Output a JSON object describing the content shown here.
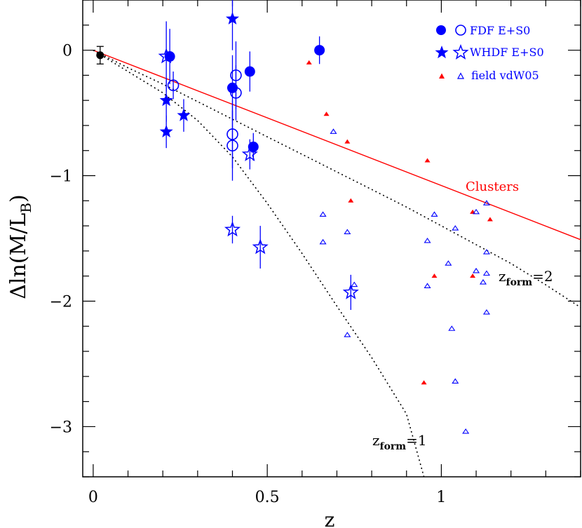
{
  "chart_data": {
    "type": "scatter",
    "xlabel": "z",
    "ylabel": "Δln(M/L_B)",
    "ylabel_main": "Δln(M/L",
    "ylabel_sub": "B",
    "ylabel_close": ")",
    "xlim": [
      -0.03,
      1.4
    ],
    "ylim": [
      -3.4,
      0.4
    ],
    "x_ticks": [
      0,
      0.5,
      1
    ],
    "x_tick_labels": [
      "0",
      "0.5",
      "1"
    ],
    "y_ticks": [
      0,
      -1,
      -2,
      -3
    ],
    "y_tick_labels": [
      "0",
      "−1",
      "−2",
      "−3"
    ],
    "x_minor_step": 0.1,
    "y_minor_step": 0.2,
    "grid": false,
    "legend_position": "top-right",
    "legend": [
      {
        "symbols": [
          "filled-circle",
          "open-circle"
        ],
        "label": "FDF E+S0"
      },
      {
        "symbols": [
          "filled-star",
          "open-star"
        ],
        "label": "WHDF E+S0"
      },
      {
        "symbols": [
          "filled-triangle",
          "open-triangle"
        ],
        "label": "field vdW05"
      }
    ],
    "colors": {
      "blue": "#0000ff",
      "red": "#ff0000",
      "black": "#000000"
    },
    "annotations": {
      "clusters": "Clusters",
      "zform2_main": "z",
      "zform2_sub": "form",
      "zform2_value": "=2",
      "zform1_main": "z",
      "zform1_sub": "form",
      "zform1_value": "=1"
    },
    "series": [
      {
        "marker": "filled-circle",
        "color": "#0000ff",
        "points": [
          {
            "x": 0.22,
            "y": -0.05,
            "err": 0.22
          },
          {
            "x": 0.4,
            "y": -0.3,
            "err": 0.26
          },
          {
            "x": 0.45,
            "y": -0.17,
            "err": 0.16
          },
          {
            "x": 0.46,
            "y": -0.77,
            "err": 0.11
          },
          {
            "x": 0.65,
            "y": 0.0,
            "err": 0.11
          }
        ]
      },
      {
        "marker": "open-circle",
        "color": "#0000ff",
        "points": [
          {
            "x": 0.23,
            "y": -0.28,
            "err": 0.11
          },
          {
            "x": 0.41,
            "y": -0.2,
            "err": 0.27
          },
          {
            "x": 0.41,
            "y": -0.34,
            "err": 0.22
          },
          {
            "x": 0.4,
            "y": -0.67,
            "err": 0.27
          },
          {
            "x": 0.4,
            "y": -0.76,
            "err": 0.28
          }
        ]
      },
      {
        "marker": "filled-star",
        "color": "#0000ff",
        "points": [
          {
            "x": 0.4,
            "y": 0.25,
            "err": 0.25
          },
          {
            "x": 0.21,
            "y": -0.4,
            "err": 0.17
          },
          {
            "x": 0.26,
            "y": -0.52,
            "err": 0.13
          },
          {
            "x": 0.21,
            "y": -0.65,
            "err": 0.13
          }
        ]
      },
      {
        "marker": "open-star",
        "color": "#0000ff",
        "points": [
          {
            "x": 0.21,
            "y": -0.05,
            "err": 0.28
          },
          {
            "x": 0.45,
            "y": -0.83,
            "err": 0.12
          },
          {
            "x": 0.4,
            "y": -1.43,
            "err": 0.11
          },
          {
            "x": 0.48,
            "y": -1.57,
            "err": 0.17
          },
          {
            "x": 0.74,
            "y": -1.93,
            "err": 0.14
          }
        ]
      },
      {
        "marker": "filled-triangle",
        "color": "#ff0000",
        "points": [
          {
            "x": 0.62,
            "y": -0.1
          },
          {
            "x": 0.67,
            "y": -0.51
          },
          {
            "x": 0.73,
            "y": -0.73
          },
          {
            "x": 0.74,
            "y": -1.2
          },
          {
            "x": 0.96,
            "y": -0.88
          },
          {
            "x": 0.98,
            "y": -1.8
          },
          {
            "x": 1.09,
            "y": -1.29
          },
          {
            "x": 1.14,
            "y": -1.35
          },
          {
            "x": 1.09,
            "y": -1.8
          },
          {
            "x": 0.95,
            "y": -2.65
          }
        ]
      },
      {
        "marker": "open-triangle",
        "color": "#0000ff",
        "points": [
          {
            "x": 0.69,
            "y": -0.65
          },
          {
            "x": 0.66,
            "y": -1.31
          },
          {
            "x": 0.66,
            "y": -1.53
          },
          {
            "x": 0.73,
            "y": -1.45
          },
          {
            "x": 0.75,
            "y": -1.87
          },
          {
            "x": 0.73,
            "y": -2.27
          },
          {
            "x": 0.98,
            "y": -1.31
          },
          {
            "x": 0.96,
            "y": -1.52
          },
          {
            "x": 0.96,
            "y": -1.88
          },
          {
            "x": 1.02,
            "y": -1.7
          },
          {
            "x": 1.04,
            "y": -1.42
          },
          {
            "x": 1.03,
            "y": -2.22
          },
          {
            "x": 1.04,
            "y": -2.64
          },
          {
            "x": 1.1,
            "y": -1.29
          },
          {
            "x": 1.13,
            "y": -1.22
          },
          {
            "x": 1.13,
            "y": -1.61
          },
          {
            "x": 1.1,
            "y": -1.76
          },
          {
            "x": 1.13,
            "y": -1.78
          },
          {
            "x": 1.12,
            "y": -1.85
          },
          {
            "x": 1.13,
            "y": -2.09
          },
          {
            "x": 1.07,
            "y": -3.04
          }
        ]
      },
      {
        "marker": "filled-circle-black",
        "color": "#000000",
        "points": [
          {
            "x": 0.02,
            "y": -0.04,
            "err": 0.07
          }
        ]
      }
    ],
    "lines": [
      {
        "name": "Clusters",
        "style": "solid",
        "color": "#ff0000",
        "points": [
          [
            0.0,
            0.0
          ],
          [
            1.4,
            -1.51
          ]
        ]
      },
      {
        "name": "z_form=2",
        "style": "dotted",
        "color": "#000000",
        "points": [
          [
            0.0,
            0.0
          ],
          [
            0.1,
            -0.14
          ],
          [
            0.2,
            -0.27
          ],
          [
            0.3,
            -0.41
          ],
          [
            0.4,
            -0.55
          ],
          [
            0.5,
            -0.69
          ],
          [
            0.6,
            -0.83
          ],
          [
            0.7,
            -0.97
          ],
          [
            0.8,
            -1.11
          ],
          [
            0.9,
            -1.25
          ],
          [
            1.0,
            -1.4
          ],
          [
            1.1,
            -1.55
          ],
          [
            1.2,
            -1.7
          ],
          [
            1.3,
            -1.87
          ],
          [
            1.4,
            -2.05
          ]
        ]
      },
      {
        "name": "z_form=1",
        "style": "dotted",
        "color": "#000000",
        "points": [
          [
            0.0,
            0.0
          ],
          [
            0.1,
            -0.17
          ],
          [
            0.2,
            -0.34
          ],
          [
            0.3,
            -0.56
          ],
          [
            0.4,
            -0.85
          ],
          [
            0.5,
            -1.22
          ],
          [
            0.6,
            -1.62
          ],
          [
            0.7,
            -2.04
          ],
          [
            0.8,
            -2.45
          ],
          [
            0.9,
            -2.9
          ],
          [
            0.95,
            -3.4
          ]
        ]
      }
    ]
  }
}
